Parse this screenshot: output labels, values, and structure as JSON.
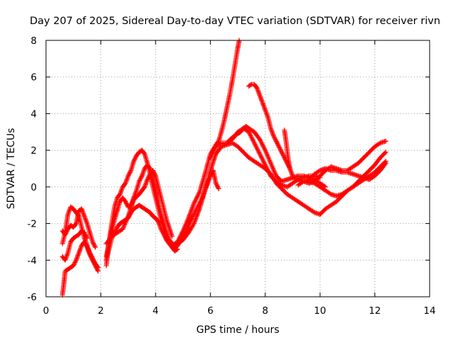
{
  "chart_data": {
    "type": "scatter",
    "title": "Day 207 of 2025, Sidereal Day-to-day VTEC variation (SDTVAR) for receiver rivn",
    "xlabel": "GPS time / hours",
    "ylabel": "SDTVAR / TECUs",
    "xlim": [
      0,
      14
    ],
    "ylim": [
      -6,
      8
    ],
    "xticks": [
      0,
      2,
      4,
      6,
      8,
      10,
      12,
      14
    ],
    "yticks": [
      -6,
      -4,
      -2,
      0,
      2,
      4,
      6,
      8
    ],
    "xtick_labels": [
      "0",
      "2",
      "4",
      "6",
      "8",
      "10",
      "12",
      "14"
    ],
    "ytick_labels": [
      "-6",
      "-4",
      "-2",
      "0",
      "2",
      "4",
      "6",
      "8"
    ],
    "grid": true,
    "marker": "+",
    "color": "#ff0000",
    "series": [
      {
        "x": [
          0.6,
          0.65,
          0.7,
          0.8,
          0.9,
          1.0,
          1.1,
          1.2,
          1.3,
          1.4,
          1.5,
          1.6,
          1.7,
          1.8,
          1.9
        ],
        "y": [
          -5.9,
          -5.3,
          -4.6,
          -4.5,
          -4.4,
          -4.3,
          -4.0,
          -3.6,
          -3.2,
          -3.0,
          -3.3,
          -3.7,
          -4.0,
          -4.3,
          -4.6
        ]
      },
      {
        "x": [
          0.6,
          0.7,
          0.8,
          0.9,
          1.0,
          1.1,
          1.2,
          1.3,
          1.4,
          1.5,
          1.6,
          1.7,
          1.8,
          1.9
        ],
        "y": [
          -3.1,
          -2.5,
          -1.5,
          -1.1,
          -1.2,
          -1.4,
          -1.6,
          -2.2,
          -2.8,
          -3.2,
          -3.6,
          -3.9,
          -4.2,
          -4.4
        ]
      },
      {
        "x": [
          0.6,
          0.7,
          0.8,
          0.9,
          1.0,
          1.1,
          1.2,
          1.3,
          1.4,
          1.5,
          1.6,
          1.7,
          1.8
        ],
        "y": [
          -2.4,
          -2.6,
          -2.3,
          -2.1,
          -2.2,
          -2.0,
          -1.3,
          -1.2,
          -1.6,
          -2.0,
          -2.5,
          -3.0,
          -3.3
        ]
      },
      {
        "x": [
          0.6,
          0.7,
          0.8,
          0.9,
          1.0,
          1.1,
          1.2,
          1.3,
          1.4,
          1.5
        ],
        "y": [
          -3.8,
          -4.0,
          -3.6,
          -3.0,
          -2.8,
          -2.7,
          -2.6,
          -2.4,
          -2.5,
          -2.8
        ]
      },
      {
        "x": [
          2.2,
          2.3,
          2.4,
          2.5,
          2.6,
          2.7,
          2.8,
          2.9,
          3.0,
          3.1,
          3.2,
          3.3,
          3.4,
          3.5,
          3.6,
          3.7,
          3.8,
          3.9,
          4.0,
          4.1,
          4.2,
          4.3,
          4.4,
          4.5,
          4.6,
          4.7,
          4.8
        ],
        "y": [
          -4.3,
          -3.0,
          -2.0,
          -1.1,
          -0.6,
          -0.4,
          0.0,
          0.2,
          0.6,
          0.9,
          1.4,
          1.7,
          1.9,
          2.0,
          1.8,
          1.3,
          0.7,
          0.0,
          -0.6,
          -1.2,
          -1.8,
          -2.3,
          -2.8,
          -3.1,
          -3.3,
          -3.5,
          -3.4
        ]
      },
      {
        "x": [
          2.2,
          2.3,
          2.4,
          2.5,
          2.6,
          2.7,
          2.8,
          2.9,
          3.0,
          3.1,
          3.2,
          3.3,
          3.4,
          3.5,
          3.6,
          3.7,
          3.8,
          3.9,
          4.0,
          4.1,
          4.2,
          4.3,
          4.4,
          4.5,
          4.6,
          4.7
        ],
        "y": [
          -3.8,
          -3.0,
          -2.4,
          -1.8,
          -1.3,
          -0.8,
          -0.6,
          -0.8,
          -1.1,
          -1.0,
          -0.6,
          -0.2,
          0.3,
          0.6,
          1.0,
          1.2,
          1.0,
          0.4,
          -0.2,
          -0.9,
          -1.5,
          -2.0,
          -2.5,
          -2.9,
          -3.1,
          -3.2
        ]
      },
      {
        "x": [
          2.2,
          2.3,
          2.4,
          2.5,
          2.6,
          2.7,
          2.8,
          2.9,
          3.0,
          3.1,
          3.2,
          3.3,
          3.4,
          3.5,
          3.6,
          3.7,
          3.8,
          3.9,
          4.0,
          4.1,
          4.2,
          4.3,
          4.4,
          4.5,
          4.6,
          4.7
        ],
        "y": [
          -4.0,
          -3.4,
          -2.8,
          -2.5,
          -2.2,
          -2.0,
          -1.9,
          -1.8,
          -1.7,
          -1.4,
          -1.2,
          -1.1,
          -1.0,
          -1.1,
          -1.2,
          -1.3,
          -1.4,
          -1.6,
          -1.7,
          -1.9,
          -2.3,
          -2.6,
          -2.9,
          -3.1,
          -3.2,
          -3.3
        ]
      },
      {
        "x": [
          2.2,
          2.4,
          2.6,
          2.8,
          3.0,
          3.2,
          3.4,
          3.5,
          3.6,
          3.7,
          3.8,
          3.9,
          4.0,
          4.2,
          4.4,
          4.6
        ],
        "y": [
          -3.1,
          -2.7,
          -2.5,
          -2.3,
          -1.6,
          -0.7,
          -0.4,
          -0.2,
          0.0,
          0.4,
          0.7,
          0.9,
          0.6,
          -0.6,
          -1.8,
          -2.7
        ]
      },
      {
        "x": [
          4.6,
          4.8,
          5.0,
          5.2,
          5.4,
          5.6,
          5.8,
          6.0,
          6.2,
          6.3,
          6.4,
          6.5,
          6.6,
          6.7,
          6.8,
          6.9,
          7.0,
          7.05
        ],
        "y": [
          -3.2,
          -3.0,
          -2.4,
          -1.7,
          -0.9,
          -0.3,
          0.7,
          1.8,
          2.3,
          2.5,
          3.0,
          3.6,
          4.3,
          5.0,
          5.8,
          6.7,
          7.6,
          8.0
        ]
      },
      {
        "x": [
          4.7,
          4.8,
          5.0,
          5.2,
          5.4,
          5.6,
          5.8,
          6.0,
          6.2,
          6.4,
          6.6,
          6.8,
          7.0,
          7.2,
          7.4,
          7.6,
          7.8,
          8.0,
          8.2,
          8.4,
          8.6,
          8.8,
          9.0,
          9.2,
          9.4,
          9.6,
          9.8,
          10.0
        ],
        "y": [
          -3.2,
          -3.1,
          -2.9,
          -2.5,
          -2.0,
          -1.2,
          -0.2,
          0.9,
          1.8,
          2.2,
          2.3,
          2.4,
          2.2,
          1.9,
          1.6,
          1.4,
          1.2,
          1.0,
          0.7,
          0.2,
          -0.1,
          -0.4,
          -0.6,
          -0.8,
          -1.0,
          -1.2,
          -1.4,
          -1.5
        ]
      },
      {
        "x": [
          4.7,
          4.9,
          5.1,
          5.3,
          5.5,
          5.7,
          5.9,
          6.0,
          6.1,
          6.2,
          6.3
        ],
        "y": [
          -3.4,
          -3.0,
          -2.4,
          -1.8,
          -1.2,
          -0.6,
          0.2,
          0.6,
          0.9,
          0.2,
          -0.1
        ]
      },
      {
        "x": [
          6.0,
          6.2,
          6.4,
          6.6,
          6.8,
          7.0,
          7.2,
          7.4,
          7.6,
          7.8,
          8.0,
          8.2,
          8.4,
          8.6,
          8.8,
          9.0,
          9.2,
          9.4,
          9.6,
          9.8,
          10.0
        ],
        "y": [
          1.6,
          2.2,
          2.4,
          2.4,
          2.6,
          3.0,
          3.2,
          3.0,
          2.4,
          1.8,
          1.2,
          0.6,
          0.3,
          0.1,
          0.0,
          0.2,
          0.4,
          0.5,
          0.6,
          0.6,
          0.5
        ]
      },
      {
        "x": [
          6.6,
          6.8,
          7.0,
          7.1,
          7.2,
          7.3,
          7.4,
          7.6,
          7.8,
          8.0,
          8.2,
          8.4,
          8.6,
          8.8,
          9.0,
          9.2,
          9.4,
          9.6,
          9.8,
          10.0,
          10.2
        ],
        "y": [
          2.4,
          2.7,
          2.9,
          3.0,
          3.2,
          3.3,
          3.2,
          3.0,
          2.6,
          2.0,
          1.3,
          0.6,
          0.3,
          0.4,
          0.5,
          0.6,
          0.6,
          0.5,
          0.4,
          0.2,
          0.0
        ]
      },
      {
        "x": [
          7.4,
          7.5,
          7.6,
          7.7,
          7.8,
          7.9,
          8.0,
          8.1,
          8.2,
          8.3,
          8.4,
          8.5,
          8.6,
          8.7,
          8.8,
          8.9,
          9.0
        ],
        "y": [
          5.5,
          5.6,
          5.6,
          5.4,
          5.0,
          4.6,
          4.2,
          3.8,
          3.2,
          2.8,
          2.5,
          2.2,
          1.9,
          1.6,
          1.3,
          1.0,
          0.6
        ]
      },
      {
        "x": [
          8.7,
          8.75,
          8.8,
          8.85,
          8.9
        ],
        "y": [
          3.1,
          2.6,
          2.0,
          1.4,
          1.0
        ]
      },
      {
        "x": [
          9.0,
          9.2,
          9.4,
          9.6,
          9.8,
          10.0,
          10.2,
          10.4,
          10.6,
          10.8,
          11.0,
          11.2,
          11.4,
          11.6,
          11.8,
          12.0,
          12.2,
          12.4
        ],
        "y": [
          0.5,
          0.4,
          0.3,
          0.2,
          0.3,
          0.6,
          0.9,
          1.1,
          1.0,
          0.9,
          0.9,
          1.1,
          1.3,
          1.6,
          1.9,
          2.2,
          2.4,
          2.5
        ]
      },
      {
        "x": [
          10.0,
          10.2,
          10.4,
          10.6,
          10.8,
          11.0,
          11.2,
          11.4,
          11.6,
          11.8,
          12.0,
          12.2,
          12.4
        ],
        "y": [
          -1.5,
          -1.2,
          -1.0,
          -0.8,
          -0.5,
          -0.2,
          0.0,
          0.3,
          0.6,
          0.9,
          1.2,
          1.6,
          1.9
        ]
      },
      {
        "x": [
          9.6,
          9.8,
          10.0,
          10.2,
          10.4,
          10.6,
          10.8,
          11.0,
          11.2,
          11.4,
          11.6,
          11.8,
          12.0,
          12.2,
          12.4
        ],
        "y": [
          0.3,
          0.2,
          0.0,
          -0.2,
          -0.4,
          -0.5,
          -0.4,
          -0.2,
          0.0,
          0.2,
          0.4,
          0.6,
          0.8,
          1.1,
          1.4
        ]
      },
      {
        "x": [
          9.2,
          9.4,
          9.6,
          9.8,
          10.0,
          10.2,
          10.4,
          10.6,
          10.8,
          11.0,
          11.2,
          11.4,
          11.6,
          11.8,
          12.0,
          12.2,
          12.4
        ],
        "y": [
          0.1,
          0.3,
          0.4,
          0.7,
          0.9,
          1.0,
          0.9,
          0.9,
          0.8,
          0.8,
          0.7,
          0.6,
          0.5,
          0.4,
          0.6,
          0.9,
          1.3
        ]
      }
    ]
  }
}
